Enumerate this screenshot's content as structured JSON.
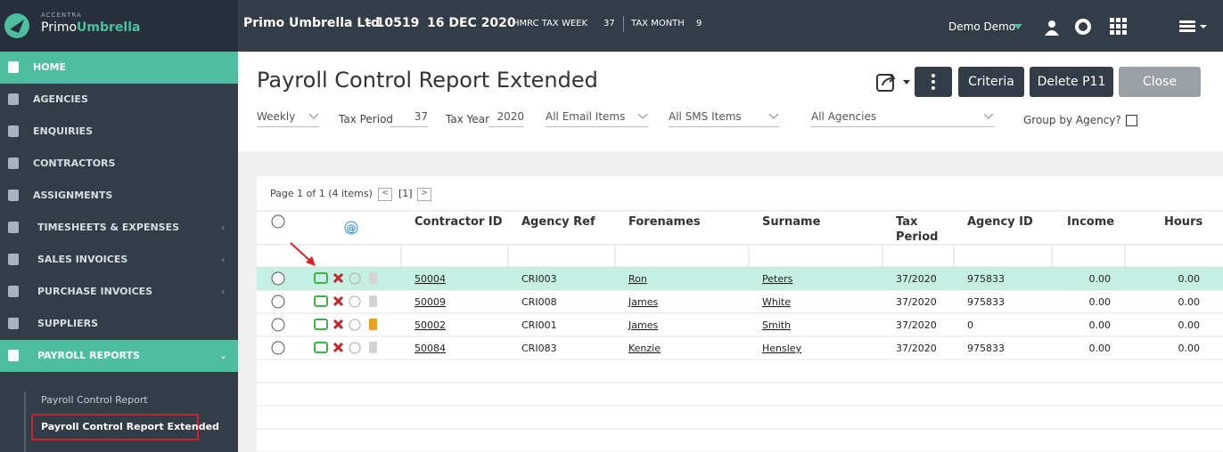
{
  "sidebar": {
    "brand_top": "ACCENTRA",
    "brand_primo": "Primo",
    "brand_umbrella": "Umbrella",
    "nav": [
      "HOME",
      "AGENCIES",
      "ENQUIRIES",
      "CONTRACTORS",
      "ASSIGNMENTS",
      "TIMESHEETS & EXPENSES",
      "SALES INVOICES",
      "PURCHASE INVOICES",
      "SUPPLIERS",
      "PAYROLL REPORTS"
    ],
    "subnav": [
      "Payroll Control Report",
      "Payroll Control Report Extended"
    ]
  },
  "topbar": {
    "company": "Primo Umbrella Ltd",
    "company_no": "- 10519",
    "date": "16 DEC 2020",
    "tax_week_label": "HMRC TAX WEEK",
    "tax_week": "37",
    "tax_month_label": "TAX MONTH",
    "tax_month": "9",
    "user": "Demo Demo"
  },
  "header": {
    "title": "Payroll Control Report Extended",
    "buttons": [
      "Criteria",
      "Delete P11",
      "Close"
    ]
  },
  "filters": {
    "frequency": "Weekly",
    "tax_period_label": "Tax Period",
    "tax_period": "37",
    "tax_year_label": "Tax Year",
    "tax_year": "2020",
    "email": "All Email Items",
    "sms": "All SMS Items",
    "agencies": "All Agencies",
    "group_label": "Group by Agency?"
  },
  "table": {
    "pager": "Page 1 of 1 (4 items)",
    "page": "[1]",
    "at_icon": "@",
    "columns": [
      "Contractor ID",
      "Agency Ref",
      "Forenames",
      "Surname",
      "Tax Period",
      "Agency ID",
      "Income",
      "Hours"
    ],
    "rows": [
      [
        "50004",
        "CRI003",
        "Ron",
        "Peters",
        "37/2020",
        "975833",
        "0.00",
        "0.00"
      ],
      [
        "50009",
        "CRI008",
        "James",
        "White",
        "37/2020",
        "975833",
        "0.00",
        "0.00"
      ],
      [
        "50002",
        "CRI001",
        "James",
        "Smith",
        "37/2020",
        "0",
        "0.00",
        "0.00"
      ],
      [
        "50084",
        "CRI083",
        "Kenzie",
        "Hensley",
        "37/2020",
        "975833",
        "0.00",
        "0.00"
      ]
    ]
  }
}
